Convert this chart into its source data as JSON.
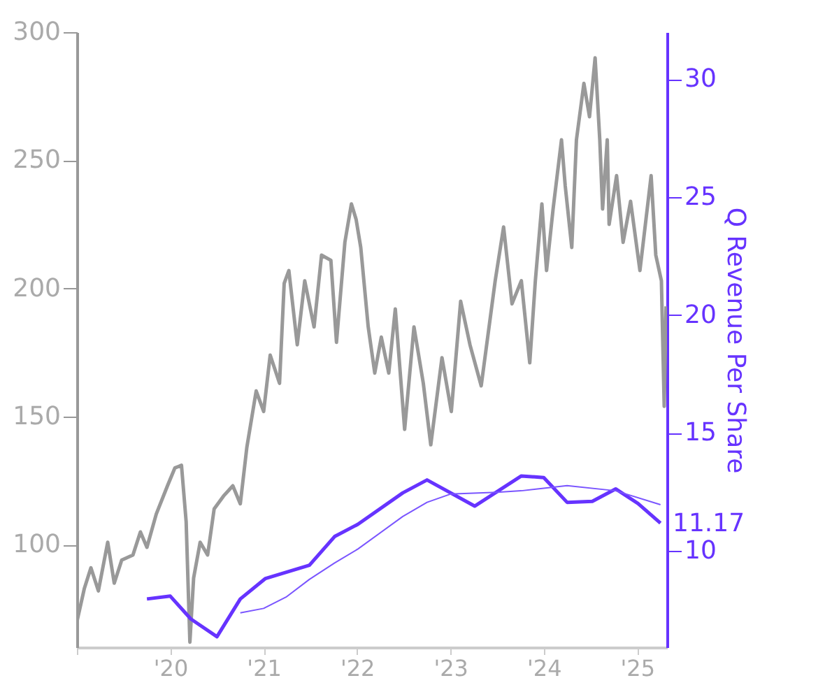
{
  "chart_data": {
    "type": "line",
    "y2label": "Q Revenue Per Share",
    "grid": false,
    "marker": "none",
    "line_style": "solid",
    "xlim": [
      2019.0,
      2025.32
    ],
    "xticks": [
      {
        "value": 2019,
        "label": null
      },
      {
        "value": 2020,
        "label": "'20"
      },
      {
        "value": 2021,
        "label": "'21"
      },
      {
        "value": 2022,
        "label": "'22"
      },
      {
        "value": 2023,
        "label": "'23"
      },
      {
        "value": 2024,
        "label": "'24"
      },
      {
        "value": 2025,
        "label": "'25"
      }
    ],
    "ylim": [
      60,
      300
    ],
    "yticks": [
      100,
      150,
      200,
      250,
      300
    ],
    "y2lim": [
      5.9,
      32
    ],
    "y2ticks": [
      10,
      15,
      20,
      25,
      30
    ],
    "series": [
      {
        "color": "#999999",
        "x": [
          2019.0,
          2019.08,
          2019.15,
          2019.23,
          2019.33,
          2019.4,
          2019.48,
          2019.6,
          2019.68,
          2019.75,
          2019.85,
          2019.97,
          2020.05,
          2020.12,
          2020.17,
          2020.21,
          2020.25,
          2020.32,
          2020.4,
          2020.47,
          2020.57,
          2020.67,
          2020.75,
          2020.82,
          2020.92,
          2021.0,
          2021.07,
          2021.17,
          2021.22,
          2021.27,
          2021.36,
          2021.44,
          2021.54,
          2021.62,
          2021.72,
          2021.78,
          2021.87,
          2021.94,
          2021.99,
          2022.04,
          2022.12,
          2022.19,
          2022.26,
          2022.34,
          2022.41,
          2022.51,
          2022.61,
          2022.71,
          2022.79,
          2022.91,
          2023.01,
          2023.11,
          2023.21,
          2023.33,
          2023.48,
          2023.57,
          2023.66,
          2023.76,
          2023.85,
          2023.91,
          2023.98,
          2024.03,
          2024.1,
          2024.19,
          2024.23,
          2024.3,
          2024.35,
          2024.43,
          2024.49,
          2024.55,
          2024.6,
          2024.63,
          2024.68,
          2024.7,
          2024.78,
          2024.85,
          2024.93,
          2025.03,
          2025.15,
          2025.2,
          2025.26,
          2025.29,
          2025.31
        ],
        "values": [
          70,
          83,
          91,
          82,
          101,
          85,
          94,
          96,
          105,
          99,
          112,
          123,
          130,
          131,
          109,
          62,
          87,
          101,
          96,
          114,
          119,
          123,
          116,
          138,
          160,
          152,
          174,
          163,
          202,
          207,
          178,
          203,
          185,
          213,
          211,
          179,
          218,
          233,
          227,
          216,
          185,
          167,
          181,
          167,
          192,
          145,
          185,
          163,
          139,
          173,
          152,
          195,
          178,
          162,
          203,
          224,
          194,
          203,
          171,
          203,
          233,
          207,
          231,
          258,
          240,
          216,
          258,
          280,
          267,
          290,
          258,
          231,
          258,
          225,
          244,
          218,
          234,
          207,
          244,
          213,
          203,
          154,
          193
        ]
      },
      {
        "color": "#6633ff",
        "axis": "y2",
        "x": [
          2019.75,
          2020.0,
          2020.22,
          2020.5,
          2020.75,
          2021.02,
          2021.49,
          2021.76,
          2022.01,
          2022.49,
          2022.75,
          2023.26,
          2023.76,
          2024.0,
          2024.25,
          2024.52,
          2024.77,
          2025.01,
          2025.25
        ],
        "values": [
          7.95,
          8.07,
          7.1,
          6.35,
          7.95,
          8.82,
          9.38,
          10.6,
          11.12,
          12.45,
          13.0,
          11.89,
          13.17,
          13.1,
          12.05,
          12.09,
          12.62,
          12.0,
          11.17
        ]
      },
      {
        "color": "#7a55ff",
        "axis": "y2",
        "x": [
          2020.75,
          2021.0,
          2021.24,
          2021.49,
          2021.76,
          2022.01,
          2022.49,
          2022.75,
          2023.0,
          2023.5,
          2023.76,
          2024.25,
          2024.77,
          2025.25
        ],
        "values": [
          7.36,
          7.55,
          8.03,
          8.78,
          9.48,
          10.07,
          11.45,
          12.05,
          12.4,
          12.48,
          12.54,
          12.76,
          12.54,
          11.95
        ]
      }
    ],
    "annotations": [
      "11.17"
    ]
  }
}
